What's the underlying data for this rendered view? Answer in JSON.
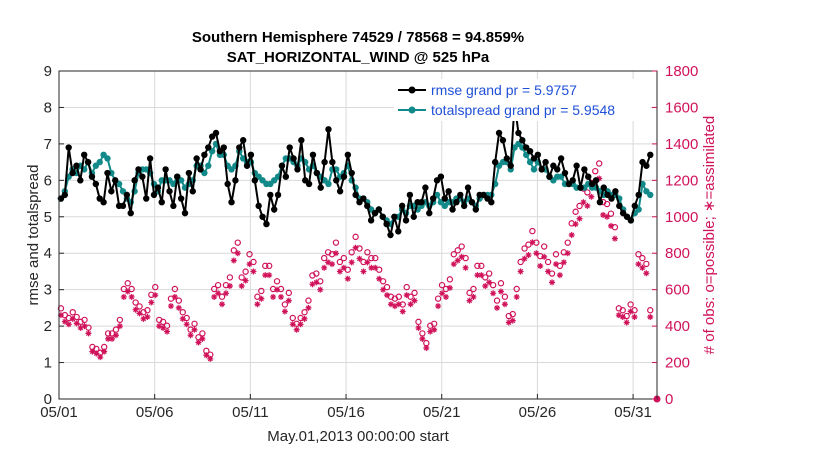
{
  "chart_data": {
    "type": "line",
    "title": "Southern Hemisphere 74529 / 78568 = 94.859%",
    "subtitle": "SAT_HORIZONTAL_WIND @ 525 hPa",
    "xlabel": "May.01,2013 00:00:00 start",
    "ylabel_left": "rmse and totalspread",
    "ylabel_right": "# of obs: o=possible; ∗=assimilated",
    "x_ticks": [
      "05/01",
      "05/06",
      "05/11",
      "05/16",
      "05/21",
      "05/26",
      "05/31"
    ],
    "x_tick_days": [
      0,
      5,
      10,
      15,
      20,
      25,
      30
    ],
    "xlim": [
      0,
      31.25
    ],
    "ylim_left": [
      0,
      9
    ],
    "y_ticks_left": [
      "0",
      "1",
      "2",
      "3",
      "4",
      "5",
      "6",
      "7",
      "8",
      "9"
    ],
    "ylim_right": [
      0,
      1800
    ],
    "y_ticks_right": [
      "0",
      "200",
      "400",
      "600",
      "800",
      "1000",
      "1200",
      "1400",
      "1600",
      "1800"
    ],
    "legend_position": "top-right",
    "colors": {
      "rmse": "#000000",
      "spread": "#138a8a",
      "obs": "#d0125a",
      "legend_text": "#1f50d8"
    },
    "series": [
      {
        "name": "rmse grand pr = 5.9757",
        "axis": "left",
        "values": [
          5.5,
          5.6,
          6.9,
          6.2,
          6.4,
          6.0,
          6.7,
          6.5,
          6.1,
          5.9,
          5.5,
          5.4,
          6.2,
          5.7,
          6.0,
          5.3,
          5.3,
          5.6,
          5.1,
          6.0,
          6.3,
          6.1,
          5.5,
          6.6,
          5.6,
          5.8,
          5.4,
          6.3,
          5.7,
          5.3,
          6.1,
          5.5,
          5.1,
          6.2,
          5.7,
          6.6,
          6.3,
          6.7,
          6.9,
          7.2,
          7.3,
          6.8,
          6.9,
          5.9,
          5.4,
          6.0,
          6.9,
          7.1,
          6.4,
          6.7,
          6.0,
          5.3,
          5.0,
          4.8,
          5.6,
          5.2,
          5.6,
          6.4,
          6.1,
          6.9,
          6.6,
          6.3,
          7.1,
          6.0,
          5.9,
          6.7,
          6.2,
          5.8,
          6.5,
          7.4,
          6.5,
          6.0,
          5.7,
          6.1,
          6.7,
          6.2,
          5.6,
          5.4,
          5.5,
          5.3,
          4.9,
          5.1,
          5.2,
          5.0,
          4.8,
          4.5,
          5.0,
          4.6,
          5.3,
          4.9,
          5.6,
          5.0,
          5.4,
          5.4,
          5.8,
          5.1,
          5.5,
          6.0,
          6.1,
          5.5,
          5.7,
          5.2,
          5.4,
          5.6,
          5.3,
          5.8,
          5.4,
          5.2,
          5.6,
          5.6,
          5.5,
          5.4,
          6.5,
          7.3,
          7.1,
          6.6,
          6.4,
          8.1,
          7.3,
          7.1,
          6.9,
          6.8,
          6.6,
          6.7,
          6.3,
          6.5,
          6.1,
          6.4,
          6.3,
          6.6,
          6.2,
          5.9,
          6.0,
          6.4,
          5.8,
          6.3,
          6.1,
          5.9,
          6.0,
          5.4,
          5.8,
          5.6,
          5.5,
          5.7,
          5.3,
          5.1,
          5.0,
          4.9,
          5.3,
          5.6,
          6.5,
          6.4,
          6.7
        ]
      },
      {
        "name": "totalspread grand pr = 5.9548",
        "axis": "left",
        "values": [
          5.5,
          5.7,
          6.1,
          6.3,
          6.2,
          6.4,
          6.3,
          6.5,
          6.2,
          6.4,
          6.5,
          6.7,
          6.6,
          6.2,
          6.0,
          5.9,
          5.7,
          5.5,
          5.4,
          5.7,
          6.2,
          6.3,
          6.3,
          6.2,
          5.9,
          5.7,
          6.0,
          6.0,
          6.0,
          5.9,
          6.1,
          6.0,
          5.8,
          5.9,
          6.0,
          6.4,
          6.4,
          6.2,
          6.4,
          6.8,
          7.0,
          6.7,
          6.7,
          6.4,
          6.3,
          6.4,
          6.8,
          6.6,
          6.5,
          6.5,
          6.2,
          6.1,
          6.0,
          5.9,
          5.9,
          6.0,
          6.1,
          6.4,
          6.6,
          6.6,
          6.5,
          6.4,
          6.6,
          6.5,
          6.3,
          6.4,
          6.2,
          6.1,
          6.0,
          5.9,
          6.3,
          6.3,
          6.1,
          6.2,
          6.4,
          6.0,
          5.8,
          5.5,
          5.5,
          5.4,
          5.2,
          5.1,
          5.2,
          5.0,
          4.9,
          4.8,
          5.0,
          5.0,
          5.2,
          5.1,
          5.3,
          5.3,
          5.2,
          5.3,
          5.4,
          5.3,
          5.4,
          5.6,
          5.4,
          5.3,
          5.4,
          5.4,
          5.5,
          5.5,
          5.4,
          5.5,
          5.4,
          5.3,
          5.5,
          5.6,
          5.6,
          5.6,
          5.9,
          6.4,
          6.5,
          6.5,
          6.3,
          6.9,
          7.0,
          6.9,
          6.7,
          6.5,
          6.3,
          6.5,
          6.3,
          6.3,
          6.1,
          6.0,
          6.1,
          6.1,
          5.9,
          5.9,
          5.9,
          5.8,
          5.8,
          5.8,
          5.9,
          5.8,
          5.8,
          5.7,
          5.6,
          5.7,
          5.6,
          5.6,
          5.5,
          5.2,
          5.0,
          4.9,
          5.1,
          5.2,
          5.9,
          5.7,
          5.6
        ]
      }
    ],
    "obs_assimilated": [
      460,
      425,
      410,
      440,
      415,
      390,
      400,
      360,
      260,
      250,
      230,
      260,
      330,
      330,
      350,
      400,
      560,
      590,
      560,
      490,
      470,
      440,
      450,
      530,
      570,
      400,
      390,
      370,
      510,
      560,
      500,
      440,
      410,
      350,
      380,
      310,
      330,
      240,
      220,
      560,
      580,
      520,
      580,
      620,
      760,
      800,
      620,
      650,
      740,
      700,
      520,
      550,
      680,
      680,
      560,
      600,
      560,
      480,
      540,
      410,
      380,
      410,
      440,
      500,
      630,
      640,
      600,
      720,
      750,
      740,
      800,
      700,
      720,
      660,
      750,
      830,
      770,
      700,
      750,
      720,
      720,
      660,
      600,
      570,
      520,
      510,
      520,
      480,
      570,
      520,
      540,
      390,
      330,
      280,
      370,
      380,
      510,
      580,
      560,
      610,
      740,
      760,
      780,
      720,
      540,
      560,
      680,
      680,
      620,
      640,
      580,
      500,
      590,
      520,
      420,
      430,
      560,
      700,
      770,
      790,
      860,
      800,
      730,
      780,
      700,
      640,
      740,
      680,
      750,
      800,
      900,
      960,
      990,
      1080,
      1060,
      1110,
      1170,
      1210,
      1010,
      1000,
      950,
      880,
      460,
      450,
      420,
      480,
      450,
      740,
      720,
      690,
      450
    ]
  }
}
